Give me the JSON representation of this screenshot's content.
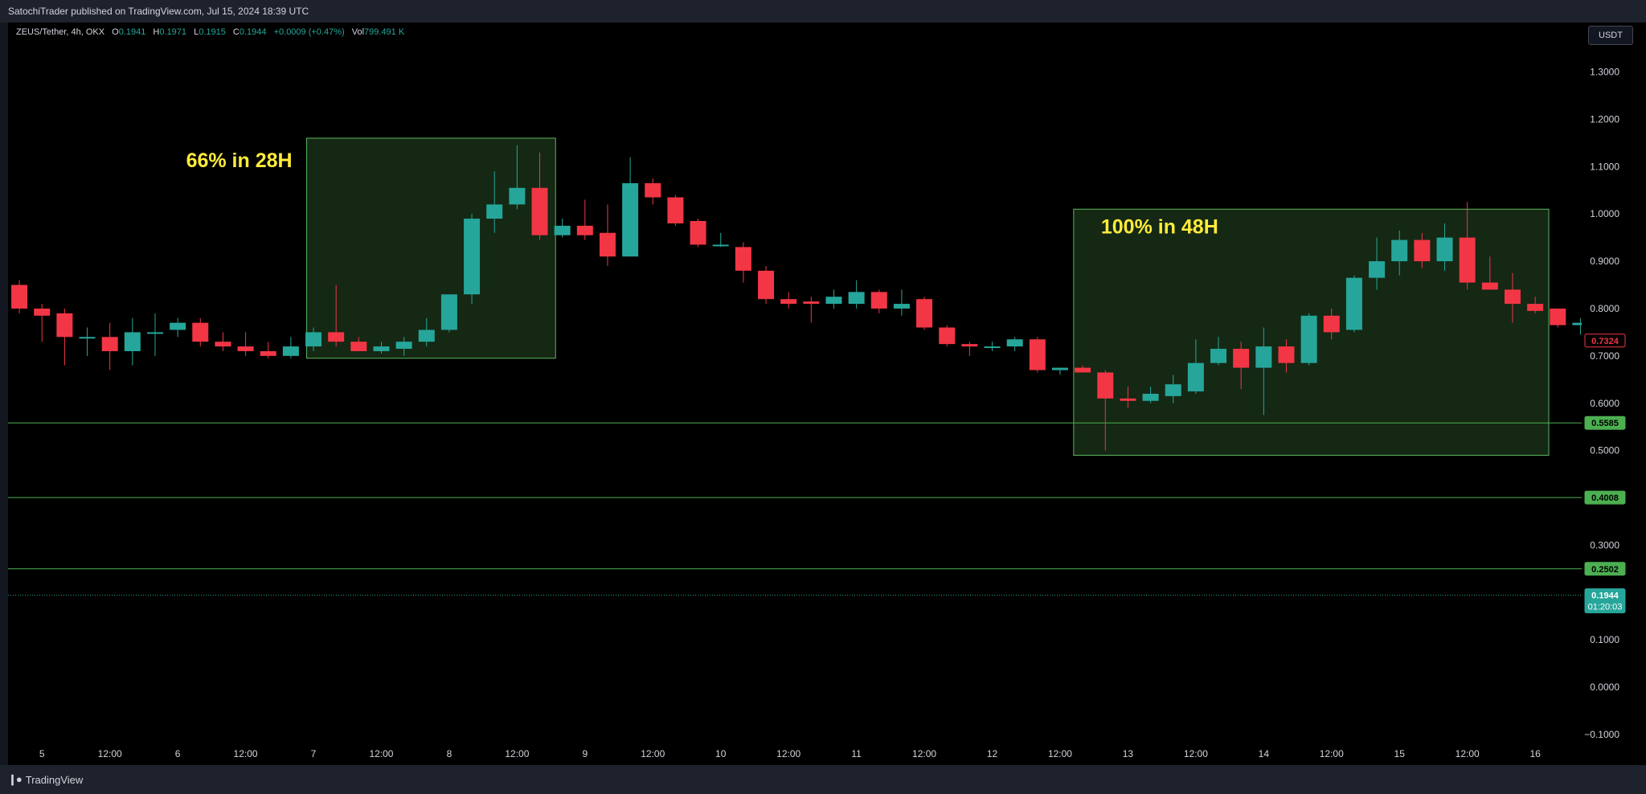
{
  "header": {
    "published": "SatochiTrader published on TradingView.com, Jul 15, 2024 18:39 UTC"
  },
  "legend": {
    "symbol": "ZEUS/Tether, 4h, OKX",
    "o_label": "O",
    "o": "0.1941",
    "h_label": "H",
    "h": "0.1971",
    "l_label": "L",
    "l": "0.1915",
    "c_label": "C",
    "c": "0.1944",
    "change": "+0.0009 (+0.47%)",
    "vol_label": "Vol",
    "vol": "799.491 K"
  },
  "currency": "USDT",
  "footer": {
    "brand": "TradingView"
  },
  "colors": {
    "up": "#26a69a",
    "down": "#f23645",
    "zone_fill": "#142814",
    "zone_border": "#5cb85c",
    "hline": "#4caf50",
    "badge": "#4caf50",
    "grid_text": "#d1d4dc"
  },
  "chart_data": {
    "type": "candlestick",
    "ylim": [
      -0.12,
      1.38
    ],
    "yticks": [
      1.3,
      1.2,
      1.1,
      1.0,
      0.9,
      0.8,
      0.7,
      0.6,
      0.5,
      0.3,
      0.1,
      0.0,
      -0.1
    ],
    "ytick_labels": [
      "1.3000",
      "1.2000",
      "1.1000",
      "1.0000",
      "0.9000",
      "0.8000",
      "0.7000",
      "0.6000",
      "0.5000",
      "0.3000",
      "0.1000",
      "0.0000",
      "−0.1000"
    ],
    "xticks": [
      {
        "i": 1.5,
        "label": "5"
      },
      {
        "i": 4.5,
        "label": "12:00"
      },
      {
        "i": 7.5,
        "label": "6"
      },
      {
        "i": 10.5,
        "label": "12:00"
      },
      {
        "i": 13.5,
        "label": "7"
      },
      {
        "i": 16.5,
        "label": "12:00"
      },
      {
        "i": 19.5,
        "label": "8"
      },
      {
        "i": 22.5,
        "label": "12:00"
      },
      {
        "i": 25.5,
        "label": "9"
      },
      {
        "i": 28.5,
        "label": "12:00"
      },
      {
        "i": 31.5,
        "label": "10"
      },
      {
        "i": 34.5,
        "label": "12:00"
      },
      {
        "i": 37.5,
        "label": "11"
      },
      {
        "i": 40.5,
        "label": "12:00"
      },
      {
        "i": 43.5,
        "label": "12"
      },
      {
        "i": 46.5,
        "label": "12:00"
      },
      {
        "i": 49.5,
        "label": "13"
      },
      {
        "i": 52.5,
        "label": "12:00"
      },
      {
        "i": 55.5,
        "label": "14"
      },
      {
        "i": 58.5,
        "label": "12:00"
      },
      {
        "i": 61.5,
        "label": "15"
      },
      {
        "i": 64.5,
        "label": "12:00"
      },
      {
        "i": 67.5,
        "label": "16"
      }
    ],
    "candles": [
      {
        "o": 0.85,
        "h": 0.86,
        "l": 0.79,
        "c": 0.8
      },
      {
        "o": 0.8,
        "h": 0.81,
        "l": 0.73,
        "c": 0.785
      },
      {
        "o": 0.79,
        "h": 0.8,
        "l": 0.68,
        "c": 0.74
      },
      {
        "o": 0.74,
        "h": 0.76,
        "l": 0.7,
        "c": 0.74
      },
      {
        "o": 0.74,
        "h": 0.77,
        "l": 0.67,
        "c": 0.71
      },
      {
        "o": 0.71,
        "h": 0.78,
        "l": 0.68,
        "c": 0.75
      },
      {
        "o": 0.75,
        "h": 0.79,
        "l": 0.7,
        "c": 0.75
      },
      {
        "o": 0.755,
        "h": 0.78,
        "l": 0.74,
        "c": 0.77
      },
      {
        "o": 0.77,
        "h": 0.78,
        "l": 0.72,
        "c": 0.73
      },
      {
        "o": 0.73,
        "h": 0.75,
        "l": 0.71,
        "c": 0.72
      },
      {
        "o": 0.72,
        "h": 0.75,
        "l": 0.7,
        "c": 0.71
      },
      {
        "o": 0.71,
        "h": 0.73,
        "l": 0.695,
        "c": 0.7
      },
      {
        "o": 0.7,
        "h": 0.74,
        "l": 0.695,
        "c": 0.72
      },
      {
        "o": 0.72,
        "h": 0.76,
        "l": 0.71,
        "c": 0.75
      },
      {
        "o": 0.75,
        "h": 0.85,
        "l": 0.72,
        "c": 0.73
      },
      {
        "o": 0.73,
        "h": 0.74,
        "l": 0.71,
        "c": 0.71
      },
      {
        "o": 0.71,
        "h": 0.73,
        "l": 0.705,
        "c": 0.72
      },
      {
        "o": 0.715,
        "h": 0.74,
        "l": 0.7,
        "c": 0.73
      },
      {
        "o": 0.73,
        "h": 0.78,
        "l": 0.72,
        "c": 0.755
      },
      {
        "o": 0.755,
        "h": 0.83,
        "l": 0.75,
        "c": 0.83
      },
      {
        "o": 0.83,
        "h": 1.0,
        "l": 0.81,
        "c": 0.99
      },
      {
        "o": 0.99,
        "h": 1.09,
        "l": 0.96,
        "c": 1.02
      },
      {
        "o": 1.02,
        "h": 1.145,
        "l": 1.01,
        "c": 1.055
      },
      {
        "o": 1.055,
        "h": 1.13,
        "l": 0.945,
        "c": 0.955
      },
      {
        "o": 0.955,
        "h": 0.99,
        "l": 0.95,
        "c": 0.975
      },
      {
        "o": 0.975,
        "h": 1.03,
        "l": 0.945,
        "c": 0.955
      },
      {
        "o": 0.96,
        "h": 1.02,
        "l": 0.89,
        "c": 0.91
      },
      {
        "o": 0.91,
        "h": 1.12,
        "l": 0.91,
        "c": 1.065
      },
      {
        "o": 1.065,
        "h": 1.075,
        "l": 1.02,
        "c": 1.035
      },
      {
        "o": 1.035,
        "h": 1.04,
        "l": 0.975,
        "c": 0.98
      },
      {
        "o": 0.985,
        "h": 0.99,
        "l": 0.93,
        "c": 0.935
      },
      {
        "o": 0.935,
        "h": 0.96,
        "l": 0.93,
        "c": 0.935
      },
      {
        "o": 0.93,
        "h": 0.94,
        "l": 0.855,
        "c": 0.88
      },
      {
        "o": 0.88,
        "h": 0.89,
        "l": 0.81,
        "c": 0.82
      },
      {
        "o": 0.82,
        "h": 0.835,
        "l": 0.8,
        "c": 0.81
      },
      {
        "o": 0.815,
        "h": 0.825,
        "l": 0.77,
        "c": 0.81
      },
      {
        "o": 0.81,
        "h": 0.84,
        "l": 0.8,
        "c": 0.825
      },
      {
        "o": 0.81,
        "h": 0.86,
        "l": 0.8,
        "c": 0.835
      },
      {
        "o": 0.835,
        "h": 0.84,
        "l": 0.79,
        "c": 0.8
      },
      {
        "o": 0.8,
        "h": 0.84,
        "l": 0.785,
        "c": 0.81
      },
      {
        "o": 0.82,
        "h": 0.825,
        "l": 0.755,
        "c": 0.76
      },
      {
        "o": 0.76,
        "h": 0.765,
        "l": 0.72,
        "c": 0.725
      },
      {
        "o": 0.725,
        "h": 0.73,
        "l": 0.7,
        "c": 0.72
      },
      {
        "o": 0.72,
        "h": 0.73,
        "l": 0.71,
        "c": 0.72
      },
      {
        "o": 0.72,
        "h": 0.74,
        "l": 0.71,
        "c": 0.735
      },
      {
        "o": 0.735,
        "h": 0.74,
        "l": 0.665,
        "c": 0.67
      },
      {
        "o": 0.67,
        "h": 0.675,
        "l": 0.66,
        "c": 0.675
      },
      {
        "o": 0.675,
        "h": 0.68,
        "l": 0.665,
        "c": 0.665
      },
      {
        "o": 0.665,
        "h": 0.67,
        "l": 0.5,
        "c": 0.61
      },
      {
        "o": 0.61,
        "h": 0.635,
        "l": 0.59,
        "c": 0.605
      },
      {
        "o": 0.605,
        "h": 0.635,
        "l": 0.6,
        "c": 0.62
      },
      {
        "o": 0.615,
        "h": 0.66,
        "l": 0.6,
        "c": 0.64
      },
      {
        "o": 0.625,
        "h": 0.735,
        "l": 0.62,
        "c": 0.685
      },
      {
        "o": 0.685,
        "h": 0.74,
        "l": 0.68,
        "c": 0.715
      },
      {
        "o": 0.715,
        "h": 0.73,
        "l": 0.63,
        "c": 0.675
      },
      {
        "o": 0.675,
        "h": 0.76,
        "l": 0.575,
        "c": 0.72
      },
      {
        "o": 0.72,
        "h": 0.735,
        "l": 0.665,
        "c": 0.685
      },
      {
        "o": 0.685,
        "h": 0.79,
        "l": 0.68,
        "c": 0.785
      },
      {
        "o": 0.785,
        "h": 0.8,
        "l": 0.735,
        "c": 0.75
      },
      {
        "o": 0.755,
        "h": 0.87,
        "l": 0.75,
        "c": 0.865
      },
      {
        "o": 0.865,
        "h": 0.95,
        "l": 0.84,
        "c": 0.9
      },
      {
        "o": 0.9,
        "h": 0.965,
        "l": 0.87,
        "c": 0.945
      },
      {
        "o": 0.945,
        "h": 0.96,
        "l": 0.885,
        "c": 0.9
      },
      {
        "o": 0.9,
        "h": 0.98,
        "l": 0.88,
        "c": 0.95
      },
      {
        "o": 0.95,
        "h": 1.025,
        "l": 0.84,
        "c": 0.855
      },
      {
        "o": 0.855,
        "h": 0.91,
        "l": 0.84,
        "c": 0.84
      },
      {
        "o": 0.84,
        "h": 0.875,
        "l": 0.77,
        "c": 0.81
      },
      {
        "o": 0.81,
        "h": 0.825,
        "l": 0.79,
        "c": 0.795
      },
      {
        "o": 0.8,
        "h": 0.8,
        "l": 0.76,
        "c": 0.765
      },
      {
        "o": 0.765,
        "h": 0.78,
        "l": 0.745,
        "c": 0.77
      },
      {
        "o": 0.77,
        "h": 0.775,
        "l": 0.73,
        "c": 0.735
      }
    ],
    "zones": [
      {
        "i_start": 13.2,
        "i_end": 24.2,
        "top": 1.16,
        "bottom": 0.695,
        "label": "66% in 28H"
      },
      {
        "i_start": 47.1,
        "i_end": 68.1,
        "top": 1.01,
        "bottom": 0.49,
        "label": "100% in 48H"
      }
    ],
    "hlines": [
      {
        "y": 0.5585,
        "label": "0.5585"
      },
      {
        "y": 0.4008,
        "label": "0.4008"
      },
      {
        "y": 0.2502,
        "label": "0.2502"
      }
    ],
    "last_price": {
      "y": 0.1944,
      "label": "0.1944",
      "countdown": "01:20:03"
    },
    "price_marker": {
      "y": 0.7324,
      "label": "0.7324"
    }
  }
}
